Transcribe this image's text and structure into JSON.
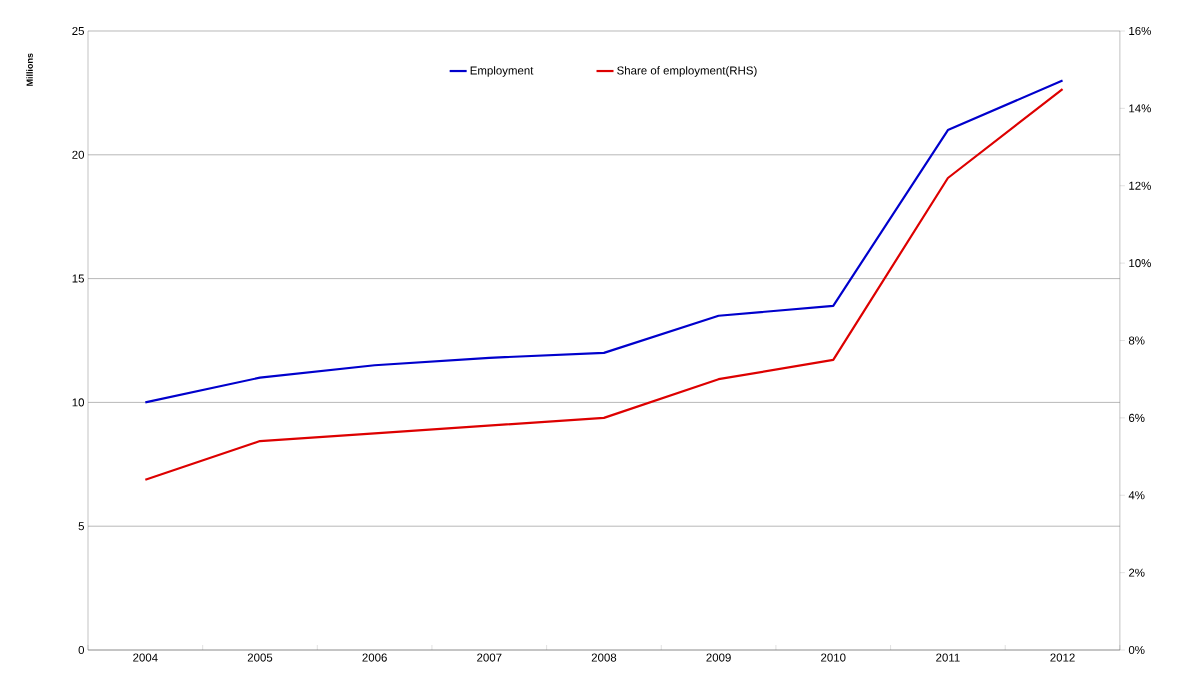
{
  "chart_data": {
    "type": "line",
    "ylabel": "Millions",
    "categories": [
      "2004",
      "2005",
      "2006",
      "2007",
      "2008",
      "2009",
      "2010",
      "2011",
      "2012"
    ],
    "series": [
      {
        "name": "Employment",
        "color": "#0000cc",
        "values": [
          10.0,
          11.0,
          11.5,
          11.8,
          12.0,
          13.5,
          13.9,
          21.0,
          23.0
        ]
      },
      {
        "name": "Share of employment(RHS)",
        "color": "#dd0000",
        "axis": "y2",
        "values": [
          4.4,
          5.4,
          5.6,
          5.8,
          6.0,
          7.0,
          7.5,
          12.2,
          14.5
        ]
      }
    ],
    "ylim": [
      0,
      25
    ],
    "yticks": [
      0,
      5,
      10,
      15,
      20,
      25
    ],
    "y2lim": [
      0,
      16
    ],
    "y2ticks": [
      {
        "value": 0,
        "label": "0%"
      },
      {
        "value": 2,
        "label": "2%"
      },
      {
        "value": 4,
        "label": "4%"
      },
      {
        "value": 6,
        "label": "6%"
      },
      {
        "value": 8,
        "label": "8%"
      },
      {
        "value": 10,
        "label": "10%"
      },
      {
        "value": 12,
        "label": "12%"
      },
      {
        "value": 14,
        "label": "14%"
      },
      {
        "value": 16,
        "label": "16%"
      }
    ],
    "grid": "y",
    "legend": "top",
    "marker": "none",
    "line_style": "solid"
  }
}
